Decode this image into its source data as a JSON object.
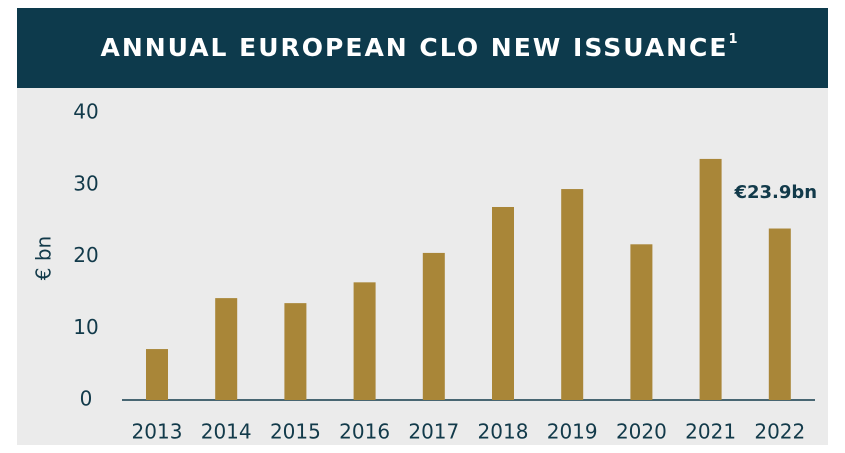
{
  "chart_data": {
    "type": "bar",
    "title": "ANNUAL EUROPEAN CLO NEW ISSUANCE",
    "title_superscript": "1",
    "y_label": "€ bn",
    "categories": [
      "2013",
      "2014",
      "2015",
      "2016",
      "2017",
      "2018",
      "2019",
      "2020",
      "2021",
      "2022"
    ],
    "values": [
      7.1,
      14.2,
      13.5,
      16.4,
      20.5,
      26.9,
      29.4,
      21.7,
      33.6,
      23.9
    ],
    "value_labels": [
      null,
      null,
      null,
      null,
      null,
      null,
      null,
      null,
      null,
      "€23.9bn"
    ],
    "color": "#a98638",
    "ylim": [
      0,
      40
    ],
    "yticks": [
      0,
      10,
      20,
      30,
      40
    ],
    "grid": false
  }
}
